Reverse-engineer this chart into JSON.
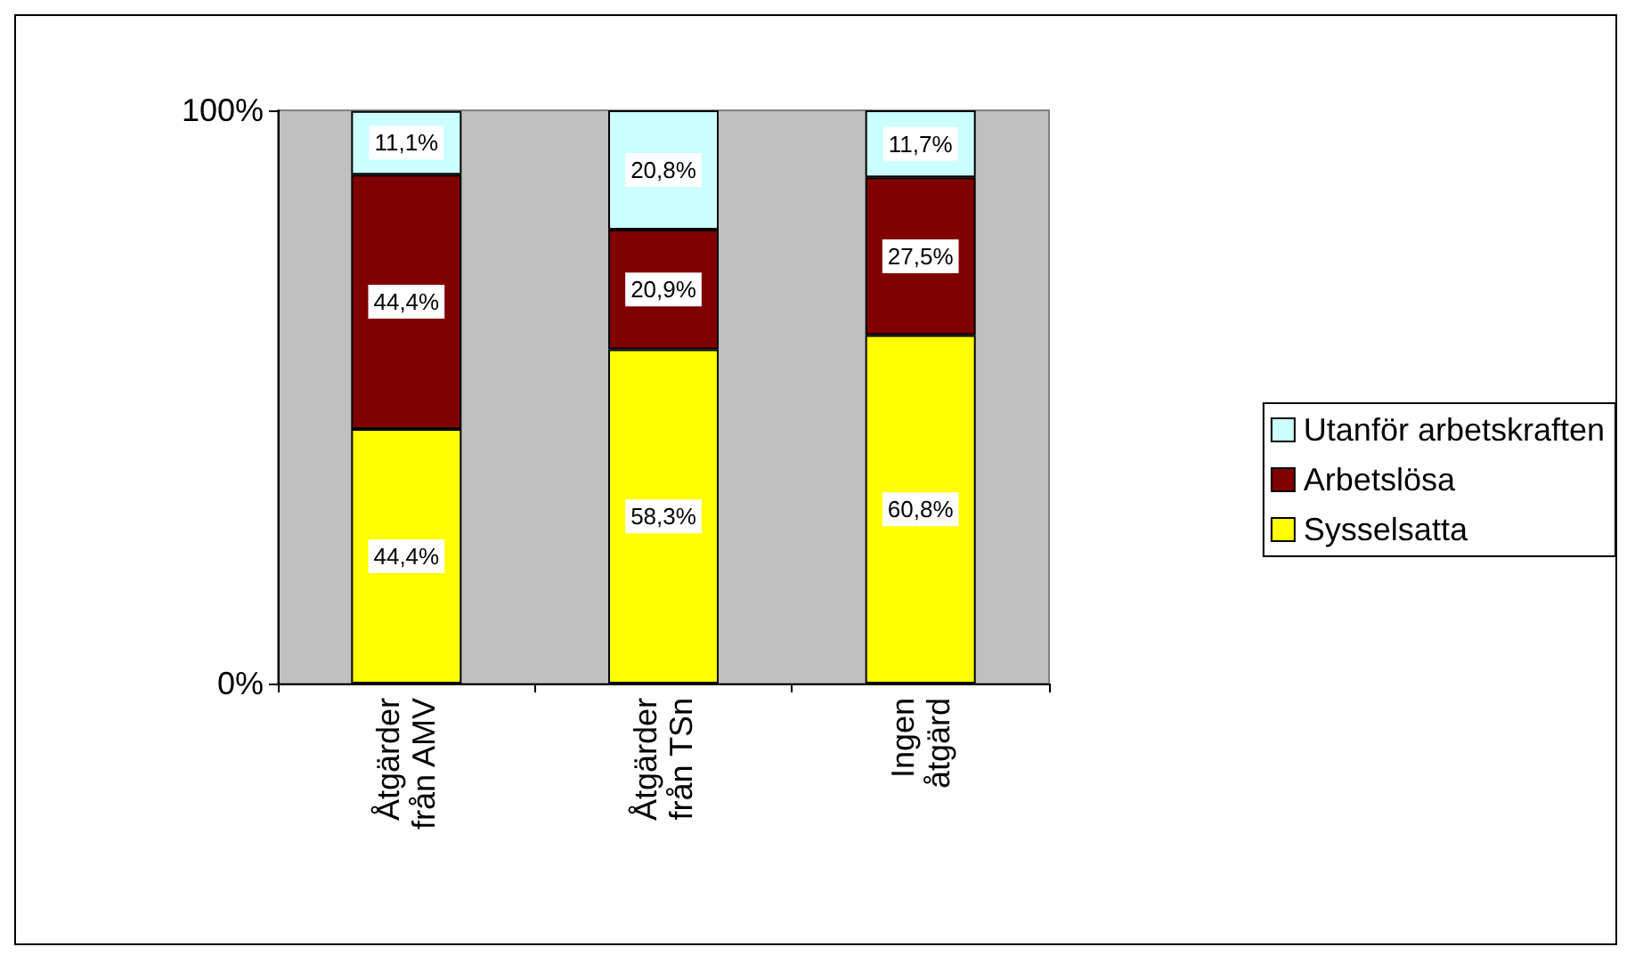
{
  "chart_data": {
    "type": "bar",
    "stacked": true,
    "categories": [
      "Åtgärder från AMV",
      "Åtgärder från TSn",
      "Ingen åtgärd"
    ],
    "series": [
      {
        "name": "Sysselsatta",
        "color": "#ffff00",
        "values": [
          44.4,
          58.3,
          60.8
        ],
        "value_labels": [
          "44,4%",
          "58,3%",
          "60,8%"
        ]
      },
      {
        "name": "Arbetslösa",
        "color": "#800000",
        "values": [
          44.4,
          20.9,
          27.5
        ],
        "value_labels": [
          "44,4%",
          "20,9%",
          "27,5%"
        ]
      },
      {
        "name": "Utanför arbetskraften",
        "color": "#ccffff",
        "values": [
          11.1,
          20.8,
          11.7
        ],
        "value_labels": [
          "11,1%",
          "20,8%",
          "11,7%"
        ]
      }
    ],
    "ylim": [
      0,
      100
    ],
    "yticks": [
      {
        "value": 0,
        "label": "0%"
      },
      {
        "value": 100,
        "label": "100%"
      }
    ],
    "legend": "right"
  }
}
